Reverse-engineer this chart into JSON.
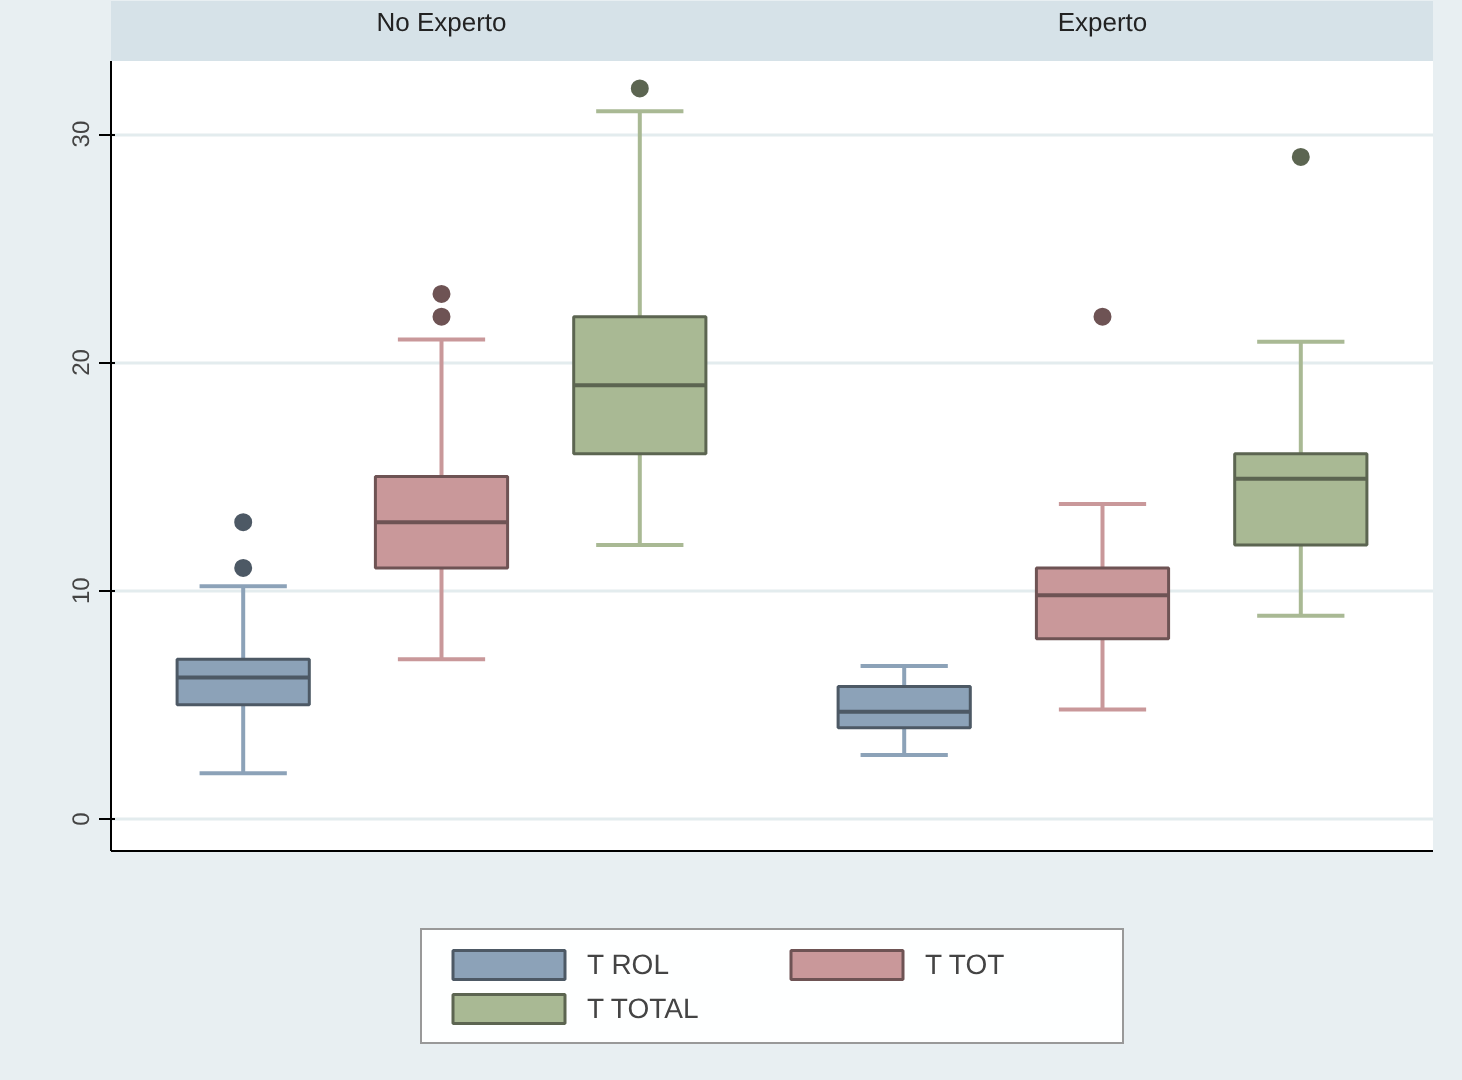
{
  "chart_data": {
    "type": "box",
    "categories": [
      "No Experto",
      "Experto"
    ],
    "ylim": [
      -1.4,
      33.2
    ],
    "yticks": [
      0,
      10,
      20,
      30
    ],
    "grid": "y",
    "legend": "bottom",
    "series": [
      {
        "name": "T ROL",
        "color": "#8ca2b8",
        "boxes": [
          {
            "low": 2,
            "q1": 5,
            "median": 6.2,
            "q3": 7,
            "high": 10.2,
            "outliers": [
              11,
              13
            ]
          },
          {
            "low": 2.8,
            "q1": 4.0,
            "median": 4.7,
            "q3": 5.8,
            "high": 6.7
          }
        ]
      },
      {
        "name": "T TOT",
        "color": "#c9989a",
        "boxes": [
          {
            "low": 7,
            "q1": 11,
            "median": 13,
            "q3": 15,
            "high": 21,
            "outliers": [
              22,
              23
            ]
          },
          {
            "low": 4.8,
            "q1": 7.9,
            "median": 9.8,
            "q3": 11.0,
            "high": 13.8,
            "outliers": [
              22
            ]
          }
        ]
      },
      {
        "name": "T TOTAL",
        "color": "#a9b994",
        "boxes": [
          {
            "low": 12,
            "q1": 16,
            "median": 19,
            "q3": 22,
            "high": 31,
            "outliers": [
              32
            ]
          },
          {
            "low": 8.9,
            "q1": 12.0,
            "median": 14.9,
            "q3": 16.0,
            "high": 20.9,
            "outliers": [
              29
            ]
          }
        ]
      }
    ]
  }
}
